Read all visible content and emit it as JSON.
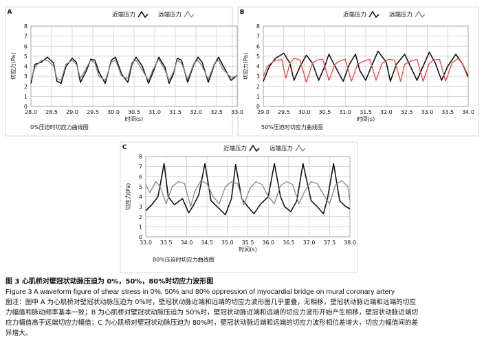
{
  "legend": {
    "near": "近端压力",
    "far": "远端压力"
  },
  "colors": {
    "near": "#111111",
    "far": "#8c8c8c",
    "far_b": "#e05050",
    "grid": "#c8c8c8"
  },
  "caption": {
    "title": "图 3   心肌桥对壁冠状动脉压迫为 0%，50%，80%时切应力波形图",
    "english": "Figure 3   A waveform figure of shear stress in 0%, 50% and 80% oppression of myocardial bridge on mural coronary artery",
    "note1": "图注：图中 A 为心肌桥对壁冠状动脉压迫为 0%时，壁冠状动脉近端和远端的切应力波形图几乎重叠，无相移，壁冠状动脉近端和远端的切应",
    "note2": "力幅值和脉动频率基本一致；B 为心肌桥对壁冠状动脉压迫为 50%时，壁冠状动脉近端和远端的切应力波形开始产生相移，壁冠状动脉近端切",
    "note3": "应力幅值高于远端切应力幅值；C 为心肌桥对壁冠状动脉压迫为 80%时，壁冠状动脉近端和远端的切应力波形相位差增大，切应力幅值间的差",
    "note4": "异增大。"
  },
  "chart_data": [
    {
      "panel": "A",
      "type": "line",
      "caption": "0%压迫时切应力曲线图",
      "xlabel": "时间(s)",
      "ylabel": "切应力(Pa)",
      "xlim": [
        28.0,
        33.0
      ],
      "ylim": [
        0,
        8
      ],
      "xticks": [
        "28.0",
        "28.5",
        "29.0",
        "29.5",
        "30.0",
        "30.5",
        "31.0",
        "31.5",
        "32.0",
        "32.5",
        "33.0"
      ],
      "yticks": [
        "0",
        "1",
        "2",
        "3",
        "4",
        "5",
        "6",
        "7",
        "8"
      ],
      "series": [
        {
          "name": "近端压力",
          "x": [
            28.0,
            28.1,
            28.25,
            28.4,
            28.55,
            28.63,
            28.73,
            28.85,
            29.0,
            29.1,
            29.2,
            29.35,
            29.45,
            29.55,
            29.65,
            29.8,
            29.95,
            30.05,
            30.2,
            30.35,
            30.45,
            30.55,
            30.7,
            30.85,
            30.95,
            31.1,
            31.25,
            31.35,
            31.45,
            31.55,
            31.65,
            31.8,
            31.95,
            32.05,
            32.15,
            32.3,
            32.45,
            32.55,
            32.65,
            32.85,
            33.0
          ],
          "y": [
            2.3,
            4.2,
            4.4,
            4.9,
            4.3,
            2.5,
            2.3,
            4.0,
            4.8,
            4.4,
            2.4,
            3.6,
            4.7,
            4.6,
            3.4,
            2.3,
            4.6,
            4.9,
            3.2,
            2.4,
            4.2,
            4.9,
            4.0,
            2.3,
            3.3,
            4.9,
            3.9,
            2.3,
            3.2,
            4.8,
            4.6,
            2.4,
            4.2,
            4.9,
            4.4,
            2.4,
            4.2,
            4.9,
            4.1,
            2.6,
            3.1
          ]
        },
        {
          "name": "远端压力",
          "x": [
            28.0,
            28.1,
            28.25,
            28.4,
            28.55,
            28.63,
            28.73,
            28.85,
            29.0,
            29.1,
            29.2,
            29.35,
            29.45,
            29.55,
            29.65,
            29.8,
            29.95,
            30.05,
            30.2,
            30.35,
            30.45,
            30.55,
            30.7,
            30.85,
            30.95,
            31.1,
            31.25,
            31.35,
            31.45,
            31.55,
            31.65,
            31.8,
            31.95,
            32.05,
            32.15,
            32.3,
            32.45,
            32.55,
            32.65,
            32.85,
            33.0
          ],
          "y": [
            2.6,
            3.9,
            4.6,
            4.6,
            4.0,
            2.8,
            2.6,
            4.2,
            4.6,
            4.2,
            2.8,
            3.9,
            4.6,
            4.3,
            3.0,
            2.6,
            4.4,
            4.6,
            3.0,
            2.8,
            4.4,
            4.6,
            3.6,
            2.6,
            3.6,
            4.7,
            3.6,
            2.6,
            3.4,
            4.6,
            4.3,
            2.7,
            4.3,
            4.6,
            4.0,
            2.7,
            4.3,
            4.6,
            3.7,
            2.9,
            3.0
          ]
        }
      ]
    },
    {
      "panel": "B",
      "type": "line",
      "caption": "50%压迫时切应力曲线图",
      "xlabel": "时间(s)",
      "ylabel": "切应力(Pa)",
      "xlim": [
        29.0,
        34.0
      ],
      "ylim": [
        0,
        8
      ],
      "xticks": [
        "29.0",
        "29.5",
        "30.0",
        "30.5",
        "31.0",
        "31.5",
        "32.0",
        "32.5",
        "33.0",
        "33.5",
        "34.0"
      ],
      "yticks": [
        "0",
        "1",
        "2",
        "3",
        "4",
        "5",
        "6",
        "7",
        "8"
      ],
      "series": [
        {
          "name": "近端压力",
          "x": [
            29.0,
            29.15,
            29.3,
            29.5,
            29.65,
            29.75,
            29.9,
            30.05,
            30.2,
            30.35,
            30.5,
            30.6,
            30.75,
            30.95,
            31.1,
            31.25,
            31.35,
            31.5,
            31.65,
            31.8,
            32.0,
            32.1,
            32.25,
            32.45,
            32.6,
            32.75,
            32.9,
            33.05,
            33.2,
            33.35,
            33.5,
            33.7,
            33.85,
            34.0
          ],
          "y": [
            2.5,
            4.0,
            4.8,
            5.3,
            4.3,
            2.6,
            4.0,
            5.1,
            4.3,
            2.6,
            4.0,
            5.2,
            4.0,
            2.5,
            4.2,
            5.2,
            3.6,
            2.6,
            4.1,
            5.5,
            4.4,
            2.5,
            4.2,
            5.2,
            3.9,
            2.6,
            4.0,
            5.4,
            4.3,
            2.6,
            4.0,
            5.2,
            4.3,
            3.0
          ]
        },
        {
          "name": "远端压力",
          "x": [
            29.0,
            29.1,
            29.25,
            29.45,
            29.55,
            29.65,
            29.75,
            29.9,
            30.05,
            30.2,
            30.3,
            30.45,
            30.6,
            30.75,
            30.85,
            31.0,
            31.15,
            31.3,
            31.45,
            31.6,
            31.75,
            31.9,
            32.05,
            32.2,
            32.35,
            32.45,
            32.6,
            32.75,
            32.9,
            33.05,
            33.15,
            33.3,
            33.45,
            33.6,
            33.75,
            33.85,
            34.0
          ],
          "y": [
            3.0,
            4.0,
            4.5,
            4.7,
            2.8,
            4.3,
            4.8,
            4.6,
            2.4,
            4.3,
            4.6,
            4.7,
            2.6,
            4.2,
            4.5,
            4.7,
            2.5,
            4.2,
            4.5,
            4.7,
            2.6,
            4.3,
            4.7,
            4.6,
            2.5,
            4.2,
            4.5,
            4.7,
            2.5,
            4.3,
            4.6,
            4.7,
            2.5,
            4.3,
            4.8,
            4.3,
            2.8
          ]
        }
      ]
    },
    {
      "panel": "C",
      "type": "line",
      "caption": "80%压迫时切应力曲线图",
      "xlabel": "时间(s)",
      "ylabel": "切应力(Pa)",
      "xlim": [
        33.0,
        38.0
      ],
      "ylim": [
        0,
        8
      ],
      "xticks": [
        "33.0",
        "33.5",
        "34.0",
        "34.5",
        "35.0",
        "35.5",
        "36.0",
        "36.5",
        "37.0",
        "37.5",
        "38.0"
      ],
      "yticks": [
        "0",
        "1",
        "2",
        "3",
        "4",
        "5",
        "6",
        "7",
        "8"
      ],
      "series": [
        {
          "name": "近端压力",
          "x": [
            33.0,
            33.15,
            33.3,
            33.45,
            33.55,
            33.7,
            33.9,
            34.05,
            34.15,
            34.3,
            34.45,
            34.6,
            34.75,
            34.95,
            35.1,
            35.2,
            35.35,
            35.5,
            35.65,
            35.8,
            36.0,
            36.15,
            36.3,
            36.4,
            36.55,
            36.7,
            36.85,
            37.05,
            37.2,
            37.35,
            37.45,
            37.6,
            37.75,
            37.9,
            38.0
          ],
          "y": [
            2.6,
            3.2,
            4.0,
            7.3,
            4.0,
            3.2,
            3.8,
            2.4,
            3.0,
            4.2,
            7.3,
            3.6,
            3.0,
            2.2,
            3.8,
            7.2,
            3.8,
            3.0,
            2.3,
            3.2,
            4.0,
            7.3,
            4.0,
            3.0,
            2.5,
            3.6,
            7.3,
            3.6,
            3.0,
            2.3,
            3.8,
            7.3,
            3.6,
            3.0,
            2.8
          ]
        },
        {
          "name": "远端压力",
          "x": [
            33.0,
            33.1,
            33.25,
            33.35,
            33.5,
            33.65,
            33.8,
            33.95,
            34.1,
            34.2,
            34.35,
            34.5,
            34.65,
            34.8,
            34.95,
            35.1,
            35.25,
            35.4,
            35.55,
            35.7,
            35.85,
            36.0,
            36.15,
            36.3,
            36.45,
            36.6,
            36.75,
            36.9,
            37.05,
            37.2,
            37.35,
            37.5,
            37.65,
            37.8,
            37.95,
            38.0
          ],
          "y": [
            5.2,
            4.4,
            5.5,
            5.0,
            3.3,
            5.0,
            5.5,
            5.3,
            3.0,
            4.5,
            5.6,
            5.3,
            4.0,
            3.3,
            5.0,
            5.5,
            5.3,
            3.2,
            4.8,
            5.5,
            5.2,
            4.0,
            3.3,
            5.1,
            5.5,
            5.2,
            3.3,
            4.6,
            5.5,
            5.3,
            4.2,
            3.3,
            5.2,
            5.6,
            5.0,
            3.6
          ]
        }
      ]
    }
  ]
}
